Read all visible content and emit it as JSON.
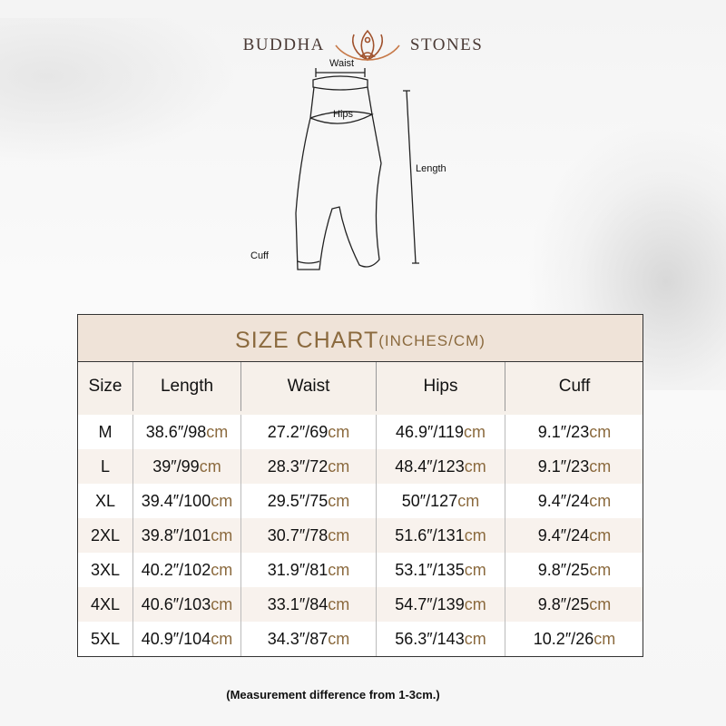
{
  "brand": {
    "left": "BUDDHA",
    "right": "STONES",
    "logo_icon": "lotus-meditation-icon"
  },
  "diagram": {
    "labels": {
      "waist": "Waist",
      "hips": "Hips",
      "length": "Length",
      "cuff": "Cuff"
    }
  },
  "table": {
    "title": "SIZE CHART",
    "title_unit": "(INCHES/CM)",
    "headers": [
      "Size",
      "Length",
      "Waist",
      "Hips",
      "Cuff"
    ],
    "unit": "cm",
    "rows": [
      {
        "size": "M",
        "cells": [
          "38.6″/98",
          "27.2″/69",
          "46.9″/119",
          "9.1″/23"
        ]
      },
      {
        "size": "L",
        "cells": [
          "39″/99",
          "28.3″/72",
          "48.4″/123",
          "9.1″/23"
        ]
      },
      {
        "size": "XL",
        "cells": [
          "39.4″/100",
          "29.5″/75",
          "50″/127",
          "9.4″/24"
        ]
      },
      {
        "size": "2XL",
        "cells": [
          "39.8″/101",
          "30.7″/78",
          "51.6″/131",
          "9.4″/24"
        ]
      },
      {
        "size": "3XL",
        "cells": [
          "40.2″/102",
          "31.9″/81",
          "53.1″/135",
          "9.8″/25"
        ]
      },
      {
        "size": "4XL",
        "cells": [
          "40.6″/103",
          "33.1″/84",
          "54.7″/139",
          "9.8″/25"
        ]
      },
      {
        "size": "5XL",
        "cells": [
          "40.9″/104",
          "34.3″/87",
          "56.3″/143",
          "10.2″/26"
        ]
      }
    ],
    "accent_color": "#8b6a3e",
    "title_bg": "#efe3d8"
  },
  "note": "(Measurement difference from 1-3cm.)"
}
